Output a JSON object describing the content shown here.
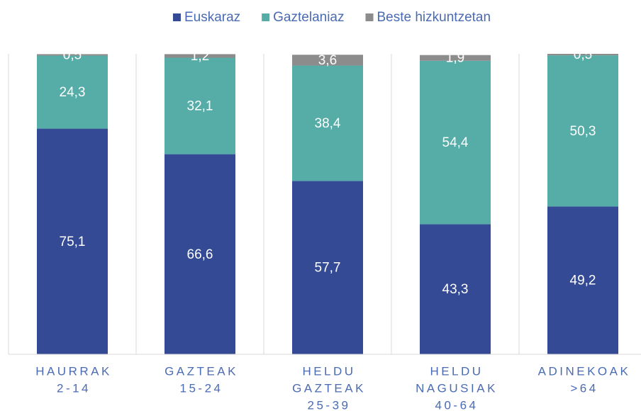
{
  "chart_data": {
    "type": "stacked_bar",
    "categories": [
      [
        "HAURRAK",
        "2-14"
      ],
      [
        "GAZTEAK",
        "15-24"
      ],
      [
        "HELDU",
        "GAZTEAK",
        "25-39"
      ],
      [
        "HELDU",
        "NAGUSIAK",
        "40-64"
      ],
      [
        "ADINEKOAK",
        ">64"
      ]
    ],
    "series": [
      {
        "name": "Euskaraz",
        "color": "#344a95",
        "values": [
          75.1,
          66.6,
          57.7,
          43.3,
          49.2
        ],
        "value_labels": [
          "75,1",
          "66,6",
          "57,7",
          "43,3",
          "49,2"
        ]
      },
      {
        "name": "Gaztelaniaz",
        "color": "#56aca7",
        "values": [
          24.3,
          32.1,
          38.4,
          54.4,
          50.3
        ],
        "value_labels": [
          "24,3",
          "32,1",
          "38,4",
          "54,4",
          "50,3"
        ]
      },
      {
        "name": "Beste hizkuntzetan",
        "color": "#8c8c8c",
        "values": [
          0.5,
          1.2,
          3.6,
          1.9,
          0.5
        ],
        "value_labels": [
          "0,5",
          "1,2",
          "3,6",
          "1,9",
          "0,5"
        ]
      }
    ],
    "ylim": [
      0,
      100
    ],
    "legend": "top"
  }
}
